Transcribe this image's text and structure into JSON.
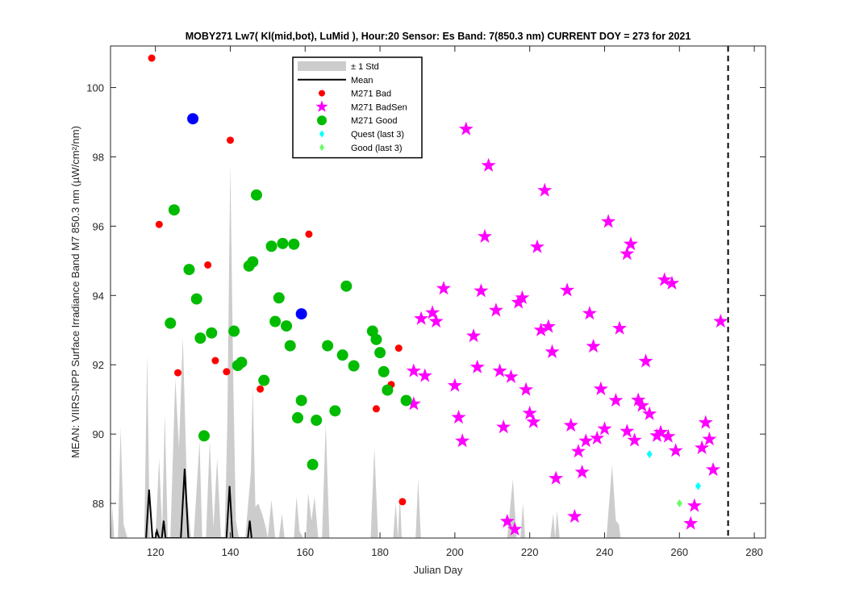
{
  "chart_data": {
    "type": "scatter",
    "title": "MOBY271   Lw7( Kl(mid,bot), LuMid ),   Hour:20 Sensor: Es Band: 7(850.3 nm)   CURRENT DOY = 273 for 2021",
    "xlabel": "Julian Day",
    "ylabel": "MEAN: VIIRS-NPP Surface Irradiance Band M7 850.3 nm (µW/cm²/nm)",
    "xlim": [
      108,
      283
    ],
    "ylim": [
      87,
      101.2
    ],
    "xticks": [
      120,
      140,
      160,
      180,
      200,
      220,
      240,
      260,
      280
    ],
    "yticks": [
      88,
      90,
      92,
      94,
      96,
      98,
      100
    ],
    "grid": false,
    "legend_position": "top-center",
    "current_doy": 273,
    "legend": [
      {
        "key": "std",
        "label": "± 1 Std"
      },
      {
        "key": "mean",
        "label": "Mean"
      },
      {
        "key": "bad",
        "label": "M271 Bad"
      },
      {
        "key": "badsen",
        "label": "M271 BadSen"
      },
      {
        "key": "good",
        "label": "M271 Good"
      },
      {
        "key": "quest3",
        "label": "Quest (last 3)"
      },
      {
        "key": "good3",
        "label": "Good (last 3)"
      }
    ],
    "colors": {
      "std": "#cccccc",
      "mean": "#000000",
      "bad": "#ff0000",
      "badsen": "#ff00ff",
      "good": "#00bb00",
      "blue": "#0000ff",
      "quest3": "#00ffff",
      "good3": "#66ff66",
      "vline": "#000000"
    },
    "std_band": [
      [
        108,
        87
      ],
      [
        108.5,
        87.9
      ],
      [
        109,
        87
      ],
      [
        110,
        87
      ],
      [
        110.7,
        90.2
      ],
      [
        111.5,
        87.4
      ],
      [
        112.5,
        87
      ],
      [
        117,
        87
      ],
      [
        117.8,
        92.3
      ],
      [
        118.5,
        87
      ],
      [
        120,
        87
      ],
      [
        121,
        89.3
      ],
      [
        121.8,
        87.2
      ],
      [
        122.5,
        90.6
      ],
      [
        123.3,
        87
      ],
      [
        124,
        87
      ],
      [
        125.3,
        91.6
      ],
      [
        126.3,
        89.6
      ],
      [
        127.3,
        92.8
      ],
      [
        128.5,
        88.2
      ],
      [
        129.5,
        87
      ],
      [
        130.2,
        87
      ],
      [
        131.8,
        89.8
      ],
      [
        132.5,
        87
      ],
      [
        133.5,
        87
      ],
      [
        134.5,
        89.8
      ],
      [
        135.5,
        87.3
      ],
      [
        136.5,
        89.3
      ],
      [
        137.5,
        87
      ],
      [
        138.5,
        87
      ],
      [
        139.2,
        90.3
      ],
      [
        140,
        97.8
      ],
      [
        140.8,
        91.5
      ],
      [
        141.5,
        87.5
      ],
      [
        142.3,
        87
      ],
      [
        144,
        87
      ],
      [
        145.5,
        88.9
      ],
      [
        146,
        91.4
      ],
      [
        146.7,
        87.9
      ],
      [
        147.5,
        88
      ],
      [
        148.5,
        87.7
      ],
      [
        149.5,
        87.3
      ],
      [
        150,
        87
      ],
      [
        151,
        88.1
      ],
      [
        152,
        87
      ],
      [
        153,
        87
      ],
      [
        153.8,
        87.7
      ],
      [
        154.5,
        87
      ],
      [
        157,
        87
      ],
      [
        157.7,
        88.2
      ],
      [
        158.5,
        87.2
      ],
      [
        159.5,
        87
      ],
      [
        160.2,
        87
      ],
      [
        160.8,
        88.3
      ],
      [
        161.7,
        87.5
      ],
      [
        162.5,
        88.2
      ],
      [
        163.5,
        87
      ],
      [
        164.5,
        87
      ],
      [
        165.5,
        90.3
      ],
      [
        166.5,
        87
      ],
      [
        177.5,
        87
      ],
      [
        178.5,
        89.6
      ],
      [
        179.5,
        87
      ],
      [
        183.5,
        87
      ],
      [
        184.2,
        88
      ],
      [
        184.8,
        87
      ],
      [
        185.3,
        88.3
      ],
      [
        185.8,
        87
      ],
      [
        189.5,
        87
      ],
      [
        190.2,
        88.7
      ],
      [
        190.9,
        87
      ],
      [
        214,
        87
      ],
      [
        215.5,
        88.7
      ],
      [
        216.5,
        87
      ],
      [
        217.5,
        87
      ],
      [
        218.2,
        88
      ],
      [
        218.8,
        87
      ],
      [
        225.5,
        87
      ],
      [
        226.3,
        87.7
      ],
      [
        226.8,
        87
      ],
      [
        227.3,
        87.8
      ],
      [
        228,
        87
      ],
      [
        240.5,
        87
      ],
      [
        241,
        87.7
      ],
      [
        242,
        89.1
      ],
      [
        243,
        87.5
      ],
      [
        243.8,
        87.4
      ],
      [
        244.3,
        87
      ]
    ],
    "mean_line": [
      [
        117.5,
        87
      ],
      [
        118.3,
        88.4
      ],
      [
        119.2,
        87
      ],
      [
        120,
        87
      ],
      [
        120.4,
        87.2
      ],
      [
        121,
        87
      ],
      [
        121.7,
        87
      ],
      [
        122.2,
        87.5
      ],
      [
        122.7,
        87
      ],
      [
        126.8,
        87
      ],
      [
        127.8,
        89
      ],
      [
        128.8,
        87
      ],
      [
        139,
        87
      ],
      [
        139.8,
        88.5
      ],
      [
        140.6,
        87
      ],
      [
        144.7,
        87
      ],
      [
        145.2,
        87.5
      ],
      [
        145.7,
        87
      ]
    ],
    "series": [
      {
        "name": "M271 Bad",
        "key": "bad",
        "points": [
          [
            119,
            100.85
          ],
          [
            121,
            96.05
          ],
          [
            134,
            94.88
          ],
          [
            140,
            98.48
          ],
          [
            126,
            91.77
          ],
          [
            136,
            92.12
          ],
          [
            139,
            91.8
          ],
          [
            148,
            91.3
          ],
          [
            161,
            95.77
          ],
          [
            179,
            90.73
          ],
          [
            183,
            91.43
          ],
          [
            185,
            92.48
          ],
          [
            186,
            88.05
          ]
        ]
      },
      {
        "name": "M271 BadSen",
        "key": "badsen",
        "points": [
          [
            203,
            98.8
          ],
          [
            209,
            97.75
          ],
          [
            224,
            97.03
          ],
          [
            208,
            95.7
          ],
          [
            222,
            95.4
          ],
          [
            241,
            96.13
          ],
          [
            247,
            95.48
          ],
          [
            246,
            95.2
          ],
          [
            197,
            94.2
          ],
          [
            207,
            94.13
          ],
          [
            218,
            93.93
          ],
          [
            217,
            93.8
          ],
          [
            230,
            94.15
          ],
          [
            256,
            94.45
          ],
          [
            258,
            94.35
          ],
          [
            191,
            93.33
          ],
          [
            194,
            93.5
          ],
          [
            195,
            93.25
          ],
          [
            211,
            93.57
          ],
          [
            223,
            93.0
          ],
          [
            225,
            93.1
          ],
          [
            236,
            93.48
          ],
          [
            244,
            93.05
          ],
          [
            271,
            93.25
          ],
          [
            205,
            92.83
          ],
          [
            226,
            92.37
          ],
          [
            237,
            92.53
          ],
          [
            189,
            91.82
          ],
          [
            192,
            91.68
          ],
          [
            206,
            91.93
          ],
          [
            212,
            91.82
          ],
          [
            215,
            91.65
          ],
          [
            251,
            92.1
          ],
          [
            200,
            91.4
          ],
          [
            219,
            91.28
          ],
          [
            239,
            91.3
          ],
          [
            243,
            90.97
          ],
          [
            249,
            90.98
          ],
          [
            250,
            90.82
          ],
          [
            189,
            90.87
          ],
          [
            201,
            90.48
          ],
          [
            213,
            90.2
          ],
          [
            220,
            90.6
          ],
          [
            221,
            90.35
          ],
          [
            231,
            90.25
          ],
          [
            240,
            90.15
          ],
          [
            246,
            90.08
          ],
          [
            252,
            90.58
          ],
          [
            202,
            89.8
          ],
          [
            233,
            89.5
          ],
          [
            235,
            89.8
          ],
          [
            238,
            89.88
          ],
          [
            248,
            89.82
          ],
          [
            254,
            89.95
          ],
          [
            255,
            90.05
          ],
          [
            257,
            89.93
          ],
          [
            259,
            89.52
          ],
          [
            267,
            90.33
          ],
          [
            268,
            89.85
          ],
          [
            266,
            89.6
          ],
          [
            234,
            88.9
          ],
          [
            227,
            88.72
          ],
          [
            269,
            88.97
          ],
          [
            214,
            87.48
          ],
          [
            216,
            87.25
          ],
          [
            232,
            87.62
          ],
          [
            264,
            87.93
          ],
          [
            263,
            87.42
          ]
        ]
      },
      {
        "name": "M271 Good",
        "key": "good",
        "points": [
          [
            125,
            96.47
          ],
          [
            147,
            96.9
          ],
          [
            129,
            94.75
          ],
          [
            146,
            94.97
          ],
          [
            145,
            94.85
          ],
          [
            151,
            95.42
          ],
          [
            154,
            95.5
          ],
          [
            157,
            95.48
          ],
          [
            131,
            93.9
          ],
          [
            153,
            93.93
          ],
          [
            171,
            94.27
          ],
          [
            124,
            93.2
          ],
          [
            152,
            93.25
          ],
          [
            155,
            93.12
          ],
          [
            178,
            92.97
          ],
          [
            135,
            92.92
          ],
          [
            141,
            92.97
          ],
          [
            132,
            92.77
          ],
          [
            179,
            92.73
          ],
          [
            143,
            92.07
          ],
          [
            142,
            91.98
          ],
          [
            156,
            92.55
          ],
          [
            166,
            92.55
          ],
          [
            170,
            92.28
          ],
          [
            173,
            91.97
          ],
          [
            180,
            92.35
          ],
          [
            181,
            91.8
          ],
          [
            149,
            91.55
          ],
          [
            182,
            91.27
          ],
          [
            187,
            90.97
          ],
          [
            159,
            90.97
          ],
          [
            158,
            90.47
          ],
          [
            163,
            90.4
          ],
          [
            168,
            90.67
          ],
          [
            133,
            89.95
          ],
          [
            162,
            89.12
          ]
        ]
      },
      {
        "name": "",
        "key": "blue",
        "points": [
          [
            130,
            99.1
          ],
          [
            159,
            93.47
          ]
        ]
      },
      {
        "name": "Quest (last 3)",
        "key": "quest3",
        "points": [
          [
            265,
            88.5
          ],
          [
            252,
            89.42
          ]
        ]
      },
      {
        "name": "Good (last 3)",
        "key": "good3",
        "points": [
          [
            260,
            88.0
          ]
        ]
      }
    ]
  }
}
